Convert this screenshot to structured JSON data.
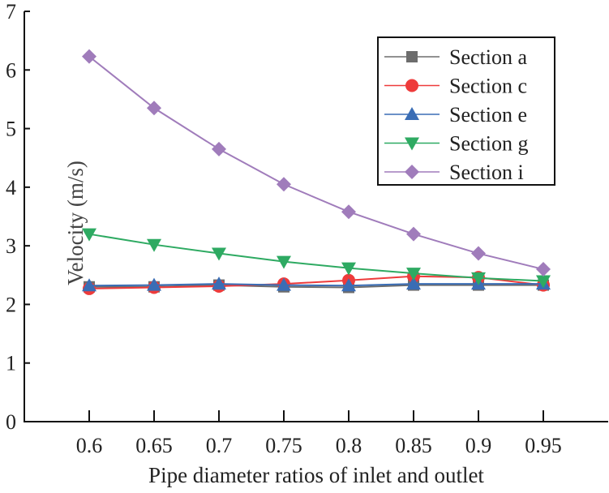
{
  "chart_data": {
    "type": "line",
    "title": "",
    "xlabel": "Pipe diameter ratios of inlet and outlet",
    "ylabel": "Velocity (m/s)",
    "x": [
      0.6,
      0.65,
      0.7,
      0.75,
      0.8,
      0.85,
      0.9,
      0.95
    ],
    "x_tick_labels": [
      "0.6",
      "0.65",
      "0.7",
      "0.75",
      "0.8",
      "0.85",
      "0.9",
      "0.95"
    ],
    "y_ticks": [
      0,
      1,
      2,
      3,
      4,
      5,
      6,
      7
    ],
    "y_tick_labels": [
      "0",
      "1",
      "2",
      "3",
      "4",
      "5",
      "6",
      "7"
    ],
    "xlim": [
      0.55,
      1.0
    ],
    "ylim": [
      0,
      7
    ],
    "grid": false,
    "legend_position": "top-right",
    "series": [
      {
        "name": "Section a",
        "color": "#6d6d6d",
        "marker": "square",
        "values": [
          2.3,
          2.3,
          2.33,
          2.3,
          2.29,
          2.33,
          2.33,
          2.33
        ]
      },
      {
        "name": "Section c",
        "color": "#ee3b3b",
        "marker": "circle",
        "values": [
          2.27,
          2.29,
          2.31,
          2.35,
          2.41,
          2.48,
          2.46,
          2.33
        ]
      },
      {
        "name": "Section e",
        "color": "#3a6db5",
        "marker": "triangle-up",
        "values": [
          2.32,
          2.33,
          2.35,
          2.33,
          2.32,
          2.35,
          2.35,
          2.35
        ]
      },
      {
        "name": "Section g",
        "color": "#2eaa62",
        "marker": "triangle-down",
        "values": [
          3.2,
          3.02,
          2.87,
          2.73,
          2.62,
          2.53,
          2.45,
          2.4
        ]
      },
      {
        "name": "Section i",
        "color": "#a07cbb",
        "marker": "diamond",
        "values": [
          6.23,
          5.35,
          4.65,
          4.05,
          3.58,
          3.2,
          2.87,
          2.6
        ]
      }
    ]
  }
}
